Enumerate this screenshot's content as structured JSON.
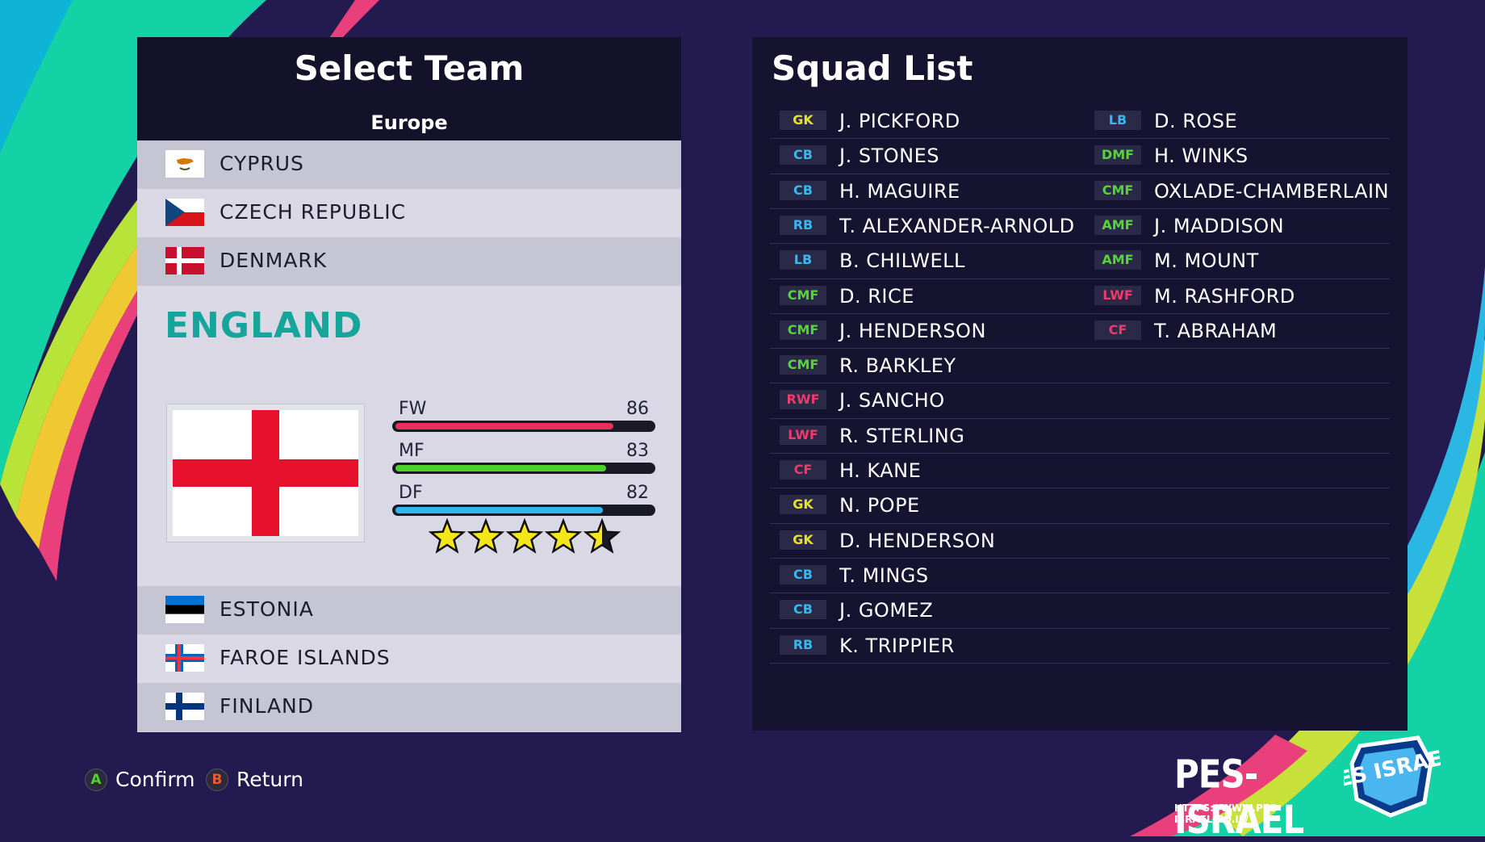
{
  "colors": {
    "background": "#231a4f",
    "selected_team": "#16a59b",
    "fw_bar": "#e8305a",
    "mf_bar": "#4fd12c",
    "df_bar": "#31b6ee",
    "star": "#f5e61b"
  },
  "team_panel": {
    "title": "Select Team",
    "region": "Europe",
    "teams_before": [
      {
        "name": "CYPRUS",
        "flag": "cyprus-flag-icon"
      },
      {
        "name": "CZECH REPUBLIC",
        "flag": "czech-flag-icon"
      },
      {
        "name": "DENMARK",
        "flag": "denmark-flag-icon"
      }
    ],
    "selected": {
      "name": "ENGLAND",
      "flag": "england-flag-icon",
      "stats": [
        {
          "label": "FW",
          "value": 86
        },
        {
          "label": "MF",
          "value": 83
        },
        {
          "label": "DF",
          "value": 82
        }
      ],
      "stars": 4.5,
      "stars_max": 5
    },
    "teams_after": [
      {
        "name": "ESTONIA",
        "flag": "estonia-flag-icon"
      },
      {
        "name": "FAROE ISLANDS",
        "flag": "faroe-flag-icon"
      },
      {
        "name": "FINLAND",
        "flag": "finland-flag-icon"
      }
    ]
  },
  "squad_panel": {
    "title": "Squad List",
    "column_1": [
      {
        "pos": "GK",
        "name": "J. PICKFORD"
      },
      {
        "pos": "CB",
        "name": "J. STONES"
      },
      {
        "pos": "CB",
        "name": "H. MAGUIRE"
      },
      {
        "pos": "RB",
        "name": "T. ALEXANDER-ARNOLD"
      },
      {
        "pos": "LB",
        "name": "B. CHILWELL"
      },
      {
        "pos": "CMF",
        "name": "D. RICE"
      },
      {
        "pos": "CMF",
        "name": "J. HENDERSON"
      },
      {
        "pos": "CMF",
        "name": "R. BARKLEY"
      },
      {
        "pos": "RWF",
        "name": "J. SANCHO"
      },
      {
        "pos": "LWF",
        "name": "R. STERLING"
      },
      {
        "pos": "CF",
        "name": "H. KANE"
      },
      {
        "pos": "GK",
        "name": "N. POPE"
      },
      {
        "pos": "GK",
        "name": "D. HENDERSON"
      },
      {
        "pos": "CB",
        "name": "T. MINGS"
      },
      {
        "pos": "CB",
        "name": "J. GOMEZ"
      },
      {
        "pos": "RB",
        "name": "K. TRIPPIER"
      }
    ],
    "column_2": [
      {
        "pos": "LB",
        "name": "D. ROSE"
      },
      {
        "pos": "DMF",
        "name": "H. WINKS"
      },
      {
        "pos": "CMF",
        "name": "OXLADE-CHAMBERLAIN"
      },
      {
        "pos": "AMF",
        "name": "J. MADDISON"
      },
      {
        "pos": "AMF",
        "name": "M. MOUNT"
      },
      {
        "pos": "LWF",
        "name": "M. RASHFORD"
      },
      {
        "pos": "CF",
        "name": "T. ABRAHAM"
      }
    ]
  },
  "footer": {
    "confirm": {
      "key": "A",
      "label": "Confirm"
    },
    "return": {
      "key": "B",
      "label": "Return"
    }
  },
  "branding": {
    "name": "PES-ISRAEL",
    "url": "HTTPS://WWW.PES-ISRAEL.CO.IL/",
    "logo_text": "PES ISRAEL"
  }
}
